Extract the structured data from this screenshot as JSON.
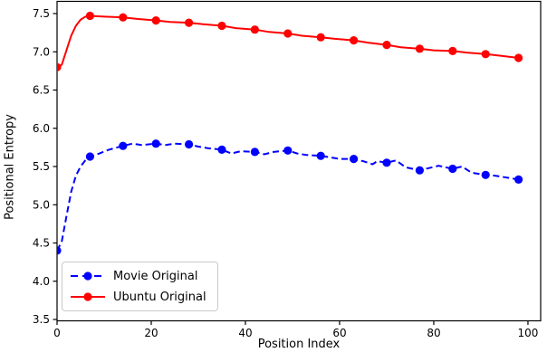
{
  "figure": {
    "background": "#ffffff",
    "text_color": "#000000",
    "spine_color": "#000000"
  },
  "chart_data": {
    "type": "line",
    "title": "",
    "xlabel": "Position Index",
    "ylabel": "Positional Entropy",
    "xlim": [
      0,
      102.7
    ],
    "ylim": [
      3.5,
      7.5
    ],
    "xticks": [
      0,
      20,
      40,
      60,
      80,
      100
    ],
    "yticks": [
      3.5,
      4.0,
      4.5,
      5.0,
      5.5,
      6.0,
      6.5,
      7.0,
      7.5
    ],
    "grid": false,
    "legend_position": "lower-left",
    "series": [
      {
        "name": "Movie Original",
        "color": "#0000ff",
        "line_style": "dashed",
        "marker": "circle",
        "marker_positions": [
          0,
          7,
          14,
          21,
          28,
          35,
          42,
          49,
          56,
          63,
          70,
          77,
          84,
          91,
          98
        ],
        "points": [
          [
            0,
            4.4
          ],
          [
            1,
            4.52
          ],
          [
            2,
            4.85
          ],
          [
            3,
            5.17
          ],
          [
            4,
            5.38
          ],
          [
            5,
            5.5
          ],
          [
            6,
            5.58
          ],
          [
            7,
            5.63
          ],
          [
            9,
            5.67
          ],
          [
            11,
            5.72
          ],
          [
            14,
            5.77
          ],
          [
            16,
            5.8
          ],
          [
            18,
            5.78
          ],
          [
            21,
            5.8
          ],
          [
            23,
            5.78
          ],
          [
            25,
            5.8
          ],
          [
            28,
            5.79
          ],
          [
            30,
            5.76
          ],
          [
            32,
            5.74
          ],
          [
            35,
            5.72
          ],
          [
            37,
            5.67
          ],
          [
            39,
            5.7
          ],
          [
            42,
            5.69
          ],
          [
            44,
            5.66
          ],
          [
            46,
            5.69
          ],
          [
            49,
            5.71
          ],
          [
            51,
            5.67
          ],
          [
            53,
            5.65
          ],
          [
            56,
            5.64
          ],
          [
            58,
            5.62
          ],
          [
            60,
            5.6
          ],
          [
            63,
            5.6
          ],
          [
            65,
            5.57
          ],
          [
            67,
            5.53
          ],
          [
            68,
            5.57
          ],
          [
            70,
            5.55
          ],
          [
            72,
            5.58
          ],
          [
            74,
            5.49
          ],
          [
            77,
            5.45
          ],
          [
            79,
            5.48
          ],
          [
            81,
            5.51
          ],
          [
            84,
            5.47
          ],
          [
            86,
            5.5
          ],
          [
            88,
            5.42
          ],
          [
            91,
            5.39
          ],
          [
            93,
            5.38
          ],
          [
            95,
            5.36
          ],
          [
            98,
            5.33
          ]
        ]
      },
      {
        "name": "Ubuntu Original",
        "color": "#ff0000",
        "line_style": "solid",
        "marker": "circle",
        "marker_positions": [
          0,
          7,
          14,
          21,
          28,
          35,
          42,
          49,
          56,
          63,
          70,
          77,
          84,
          91,
          98
        ],
        "points": [
          [
            0,
            6.8
          ],
          [
            1,
            6.83
          ],
          [
            2,
            7.02
          ],
          [
            3,
            7.21
          ],
          [
            4,
            7.34
          ],
          [
            5,
            7.42
          ],
          [
            6,
            7.46
          ],
          [
            7,
            7.47
          ],
          [
            10,
            7.46
          ],
          [
            14,
            7.45
          ],
          [
            17,
            7.43
          ],
          [
            21,
            7.41
          ],
          [
            24,
            7.39
          ],
          [
            28,
            7.38
          ],
          [
            31,
            7.36
          ],
          [
            35,
            7.34
          ],
          [
            38,
            7.31
          ],
          [
            42,
            7.29
          ],
          [
            45,
            7.26
          ],
          [
            49,
            7.24
          ],
          [
            52,
            7.21
          ],
          [
            56,
            7.19
          ],
          [
            59,
            7.17
          ],
          [
            63,
            7.15
          ],
          [
            66,
            7.12
          ],
          [
            70,
            7.09
          ],
          [
            73,
            7.06
          ],
          [
            77,
            7.04
          ],
          [
            80,
            7.02
          ],
          [
            84,
            7.01
          ],
          [
            87,
            6.99
          ],
          [
            91,
            6.97
          ],
          [
            94,
            6.95
          ],
          [
            98,
            6.92
          ]
        ]
      }
    ]
  }
}
